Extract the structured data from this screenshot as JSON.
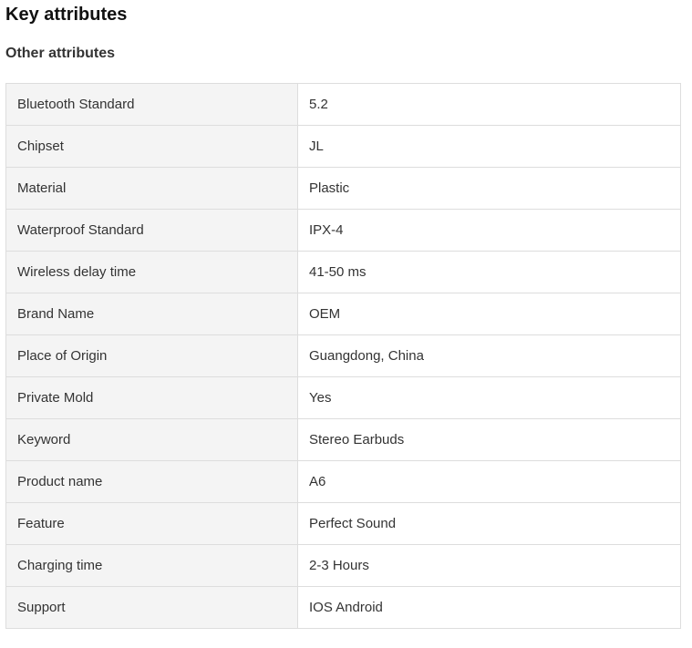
{
  "title": "Key attributes",
  "subtitle": "Other attributes",
  "attributes": [
    {
      "key": "Bluetooth Standard",
      "value": "5.2"
    },
    {
      "key": "Chipset",
      "value": "JL"
    },
    {
      "key": "Material",
      "value": "Plastic"
    },
    {
      "key": "Waterproof Standard",
      "value": "IPX-4"
    },
    {
      "key": "Wireless delay time",
      "value": "41-50 ms"
    },
    {
      "key": "Brand Name",
      "value": "OEM"
    },
    {
      "key": "Place of Origin",
      "value": "Guangdong, China"
    },
    {
      "key": "Private Mold",
      "value": "Yes"
    },
    {
      "key": "Keyword",
      "value": "Stereo Earbuds"
    },
    {
      "key": "Product name",
      "value": "A6"
    },
    {
      "key": "Feature",
      "value": "Perfect Sound"
    },
    {
      "key": "Charging time",
      "value": "2-3 Hours"
    },
    {
      "key": "Support",
      "value": "IOS Android"
    }
  ]
}
